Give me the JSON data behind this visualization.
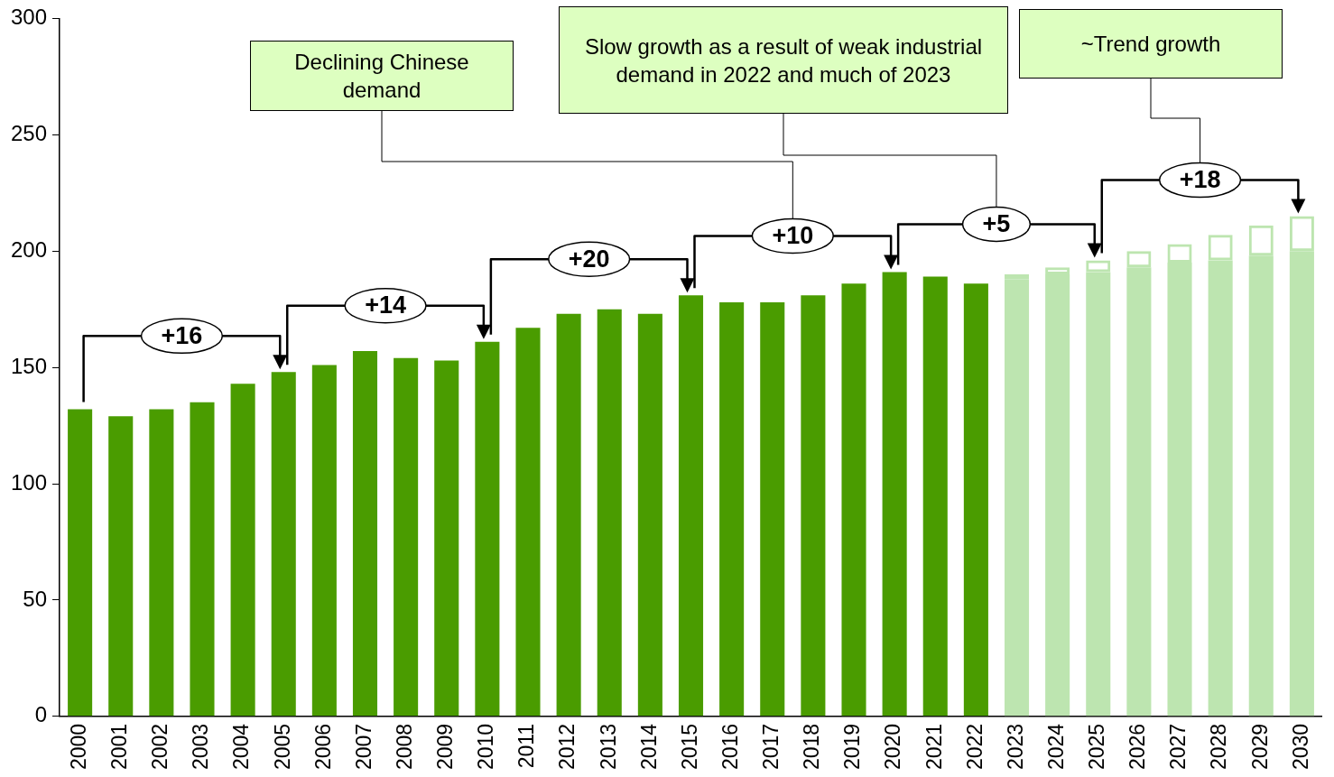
{
  "chart_data": {
    "type": "bar",
    "stacked": true,
    "categories": [
      "2000",
      "2001",
      "2002",
      "2003",
      "2004",
      "2005",
      "2006",
      "2007",
      "2008",
      "2009",
      "2010",
      "2011",
      "2012",
      "2013",
      "2014",
      "2015",
      "2016",
      "2017",
      "2018",
      "2019",
      "2020",
      "2021",
      "2022",
      "2023",
      "2024",
      "2025",
      "2026",
      "2027",
      "2028",
      "2029",
      "2030"
    ],
    "series": [
      {
        "values": [
          132,
          129,
          132,
          135,
          143,
          148,
          151,
          157,
          154,
          153,
          161,
          167,
          173,
          175,
          173,
          181,
          178,
          178,
          181,
          186,
          191,
          189,
          186,
          188,
          190,
          191,
          193,
          195,
          196,
          198,
          200
        ],
        "colors": [
          "#4a9c00",
          "#4a9c00",
          "#4a9c00",
          "#4a9c00",
          "#4a9c00",
          "#4a9c00",
          "#4a9c00",
          "#4a9c00",
          "#4a9c00",
          "#4a9c00",
          "#4a9c00",
          "#4a9c00",
          "#4a9c00",
          "#4a9c00",
          "#4a9c00",
          "#4a9c00",
          "#4a9c00",
          "#4a9c00",
          "#4a9c00",
          "#4a9c00",
          "#4a9c00",
          "#4a9c00",
          "#4a9c00",
          "#bde5b0",
          "#bde5b0",
          "#bde5b0",
          "#bde5b0",
          "#bde5b0",
          "#bde5b0",
          "#bde5b0",
          "#bde5b0"
        ]
      },
      {
        "values": [
          null,
          null,
          null,
          null,
          null,
          null,
          null,
          null,
          null,
          null,
          null,
          null,
          null,
          null,
          null,
          null,
          null,
          null,
          null,
          null,
          null,
          null,
          null,
          2,
          3,
          5,
          7,
          8,
          11,
          13,
          15
        ],
        "color": "#bde5b0"
      }
    ],
    "ylim": [
      0,
      300
    ],
    "yticks": [
      0,
      50,
      100,
      150,
      200,
      250,
      300
    ],
    "grid": false,
    "legend": false,
    "annotations": [
      "+16",
      "+14",
      "+20",
      "+10",
      "+5",
      "+18",
      "Declining Chinese demand",
      "Slow growth as a result of weak industrial demand in 2022 and much of 2023",
      "~Trend growth"
    ]
  }
}
